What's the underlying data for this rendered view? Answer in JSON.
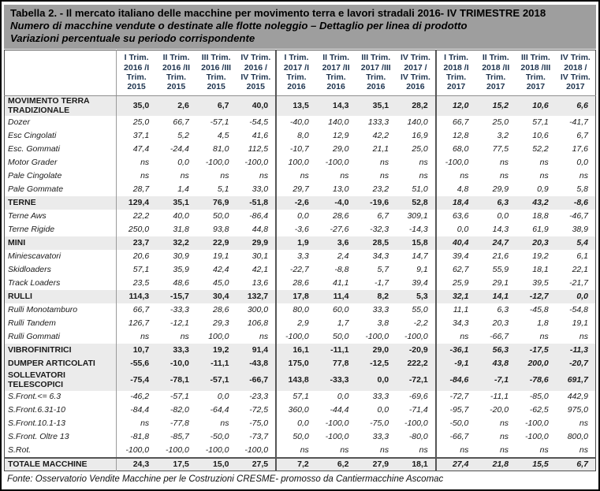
{
  "title": {
    "line1": "Tabella 2. - Il mercato italiano delle macchine per movimento terra e lavori stradali 2016- IV TRIMESTRE 2018",
    "line2": "Numero di macchine vendute o destinate alle flotte noleggio – Dettaglio per linea di prodotto",
    "line3": "Variazioni percentuale su periodo corrispondente"
  },
  "table": {
    "row_header_label": "",
    "columns": [
      "I Trim.\n2016 /I\nTrim.\n2015",
      "II Trim.\n2016 /II\nTrim.\n2015",
      "III Trim.\n2016 /III\nTrim.\n2015",
      "IV Trim.\n2016 /\nIV Trim.\n2015",
      "I Trim.\n2017 /I\nTrim.\n2016",
      "II Trim.\n2017 /II\nTrim.\n2016",
      "III Trim.\n2017 /III\nTrim.\n2016",
      "IV Trim.\n2017 /\nIV Trim.\n2016",
      "I Trim.\n2018 /I\nTrim.\n2017",
      "II Trim.\n2018 /II\nTrim.\n2017",
      "III Trim.\n2018 /III\nTrim.\n2017",
      "IV Trim.\n2018 /\nIV Trim.\n2017"
    ],
    "rows": [
      {
        "label": "MOVIMENTO TERRA TRADIZIONALE",
        "style": "section",
        "values": [
          "35,0",
          "2,6",
          "6,7",
          "40,0",
          "13,5",
          "14,3",
          "35,1",
          "28,2",
          "12,0",
          "15,2",
          "10,6",
          "6,6"
        ]
      },
      {
        "label": "Dozer",
        "style": "sub",
        "values": [
          "25,0",
          "66,7",
          "-57,1",
          "-54,5",
          "-40,0",
          "140,0",
          "133,3",
          "140,0",
          "66,7",
          "25,0",
          "57,1",
          "-41,7"
        ]
      },
      {
        "label": "Esc Cingolati",
        "style": "sub",
        "values": [
          "37,1",
          "5,2",
          "4,5",
          "41,6",
          "8,0",
          "12,9",
          "42,2",
          "16,9",
          "12,8",
          "3,2",
          "10,6",
          "6,7"
        ]
      },
      {
        "label": "Esc. Gommati",
        "style": "sub",
        "values": [
          "47,4",
          "-24,4",
          "81,0",
          "112,5",
          "-10,7",
          "29,0",
          "21,1",
          "25,0",
          "68,0",
          "77,5",
          "52,2",
          "17,6"
        ]
      },
      {
        "label": "Motor Grader",
        "style": "sub",
        "values": [
          "ns",
          "0,0",
          "-100,0",
          "-100,0",
          "100,0",
          "-100,0",
          "ns",
          "ns",
          "-100,0",
          "ns",
          "ns",
          "0,0"
        ]
      },
      {
        "label": "Pale Cingolate",
        "style": "sub",
        "values": [
          "ns",
          "ns",
          "ns",
          "ns",
          "ns",
          "ns",
          "ns",
          "ns",
          "ns",
          "ns",
          "ns",
          "ns"
        ]
      },
      {
        "label": "Pale Gommate",
        "style": "sub",
        "values": [
          "28,7",
          "1,4",
          "5,1",
          "33,0",
          "29,7",
          "13,0",
          "23,2",
          "51,0",
          "4,8",
          "29,9",
          "0,9",
          "5,8"
        ]
      },
      {
        "label": "TERNE",
        "style": "section",
        "values": [
          "129,4",
          "35,1",
          "76,9",
          "-51,8",
          "-2,6",
          "-4,0",
          "-19,6",
          "52,8",
          "18,4",
          "6,3",
          "43,2",
          "-8,6"
        ]
      },
      {
        "label": "Terne Aws",
        "style": "sub",
        "values": [
          "22,2",
          "40,0",
          "50,0",
          "-86,4",
          "0,0",
          "28,6",
          "6,7",
          "309,1",
          "63,6",
          "0,0",
          "18,8",
          "-46,7"
        ]
      },
      {
        "label": "Terne Rigide",
        "style": "sub",
        "values": [
          "250,0",
          "31,8",
          "93,8",
          "44,8",
          "-3,6",
          "-27,6",
          "-32,3",
          "-14,3",
          "0,0",
          "14,3",
          "61,9",
          "38,9"
        ]
      },
      {
        "label": "MINI",
        "style": "section",
        "values": [
          "23,7",
          "32,2",
          "22,9",
          "29,9",
          "1,9",
          "3,6",
          "28,5",
          "15,8",
          "40,4",
          "24,7",
          "20,3",
          "5,4"
        ]
      },
      {
        "label": "Miniescavatori",
        "style": "sub",
        "values": [
          "20,6",
          "30,9",
          "19,1",
          "30,1",
          "3,3",
          "2,4",
          "34,3",
          "14,7",
          "39,4",
          "21,6",
          "19,2",
          "6,1"
        ]
      },
      {
        "label": "Skidloaders",
        "style": "sub",
        "values": [
          "57,1",
          "35,9",
          "42,4",
          "42,1",
          "-22,7",
          "-8,8",
          "5,7",
          "9,1",
          "62,7",
          "55,9",
          "18,1",
          "22,1"
        ]
      },
      {
        "label": "Track Loaders",
        "style": "sub",
        "values": [
          "23,5",
          "48,6",
          "45,0",
          "13,6",
          "28,6",
          "41,1",
          "-1,7",
          "39,4",
          "25,9",
          "29,1",
          "39,5",
          "-21,7"
        ]
      },
      {
        "label": "RULLI",
        "style": "section",
        "values": [
          "114,3",
          "-15,7",
          "30,4",
          "132,7",
          "17,8",
          "11,4",
          "8,2",
          "5,3",
          "32,1",
          "14,1",
          "-12,7",
          "0,0"
        ]
      },
      {
        "label": "Rulli Monotamburo",
        "style": "sub",
        "values": [
          "66,7",
          "-33,3",
          "28,6",
          "300,0",
          "80,0",
          "60,0",
          "33,3",
          "55,0",
          "11,1",
          "6,3",
          "-45,8",
          "-54,8"
        ]
      },
      {
        "label": "Rulli Tandem",
        "style": "sub",
        "values": [
          "126,7",
          "-12,1",
          "29,3",
          "106,8",
          "2,9",
          "1,7",
          "3,8",
          "-2,2",
          "34,3",
          "20,3",
          "1,8",
          "19,1"
        ]
      },
      {
        "label": "Rulli Gommati",
        "style": "sub",
        "values": [
          "ns",
          "ns",
          "100,0",
          "ns",
          "-100,0",
          "50,0",
          "-100,0",
          "-100,0",
          "ns",
          "-66,7",
          "ns",
          "ns"
        ]
      },
      {
        "label": "VIBROFINITRICI",
        "style": "section",
        "values": [
          "10,7",
          "33,3",
          "19,2",
          "91,4",
          "16,1",
          "-11,1",
          "29,0",
          "-20,9",
          "-36,1",
          "56,3",
          "-17,5",
          "-11,3"
        ]
      },
      {
        "label": "DUMPER ARTICOLATI",
        "style": "section",
        "values": [
          "-55,6",
          "-10,0",
          "-11,1",
          "-43,8",
          "175,0",
          "77,8",
          "-12,5",
          "222,2",
          "-9,1",
          "43,8",
          "200,0",
          "-20,7"
        ]
      },
      {
        "label": "SOLLEVATORI TELESCOPICI",
        "style": "section",
        "values": [
          "-75,4",
          "-78,1",
          "-57,1",
          "-66,7",
          "143,8",
          "-33,3",
          "0,0",
          "-72,1",
          "-84,6",
          "-7,1",
          "-78,6",
          "691,7"
        ]
      },
      {
        "label": "S.Front.<= 6.3",
        "style": "sub",
        "values": [
          "-46,2",
          "-57,1",
          "0,0",
          "-23,3",
          "57,1",
          "0,0",
          "33,3",
          "-69,6",
          "-72,7",
          "-11,1",
          "-85,0",
          "442,9"
        ]
      },
      {
        "label": "S.Front.6.31-10",
        "style": "sub",
        "values": [
          "-84,4",
          "-82,0",
          "-64,4",
          "-72,5",
          "360,0",
          "-44,4",
          "0,0",
          "-71,4",
          "-95,7",
          "-20,0",
          "-62,5",
          "975,0"
        ]
      },
      {
        "label": "S.Front.10.1-13",
        "style": "sub",
        "values": [
          "ns",
          "-77,8",
          "ns",
          "-75,0",
          "0,0",
          "-100,0",
          "-75,0",
          "-100,0",
          "-50,0",
          "ns",
          "-100,0",
          "ns"
        ]
      },
      {
        "label": "S.Front. Oltre 13",
        "style": "sub",
        "values": [
          "-81,8",
          "-85,7",
          "-50,0",
          "-73,7",
          "50,0",
          "-100,0",
          "33,3",
          "-80,0",
          "-66,7",
          "ns",
          "-100,0",
          "800,0"
        ]
      },
      {
        "label": "S.Rot.",
        "style": "sub",
        "values": [
          "-100,0",
          "-100,0",
          "-100,0",
          "-100,0",
          "ns",
          "ns",
          "ns",
          "ns",
          "ns",
          "ns",
          "ns",
          "ns"
        ]
      },
      {
        "label": "TOTALE MACCHINE",
        "style": "total",
        "values": [
          "24,3",
          "17,5",
          "15,0",
          "27,5",
          "7,2",
          "6,2",
          "27,9",
          "18,1",
          "27,4",
          "21,8",
          "15,5",
          "6,7"
        ]
      }
    ]
  },
  "footer": "Fonte: Osservatorio Vendite Macchine per le Costruzioni  CRESME- promosso da Cantiermacchine Ascomac",
  "colors": {
    "title_bg": "#9e9e9e",
    "header_text": "#1f3550",
    "section_bg": "#ebebeb",
    "border_dark": "#4d4d4d",
    "border_light": "#9a9a9a"
  }
}
